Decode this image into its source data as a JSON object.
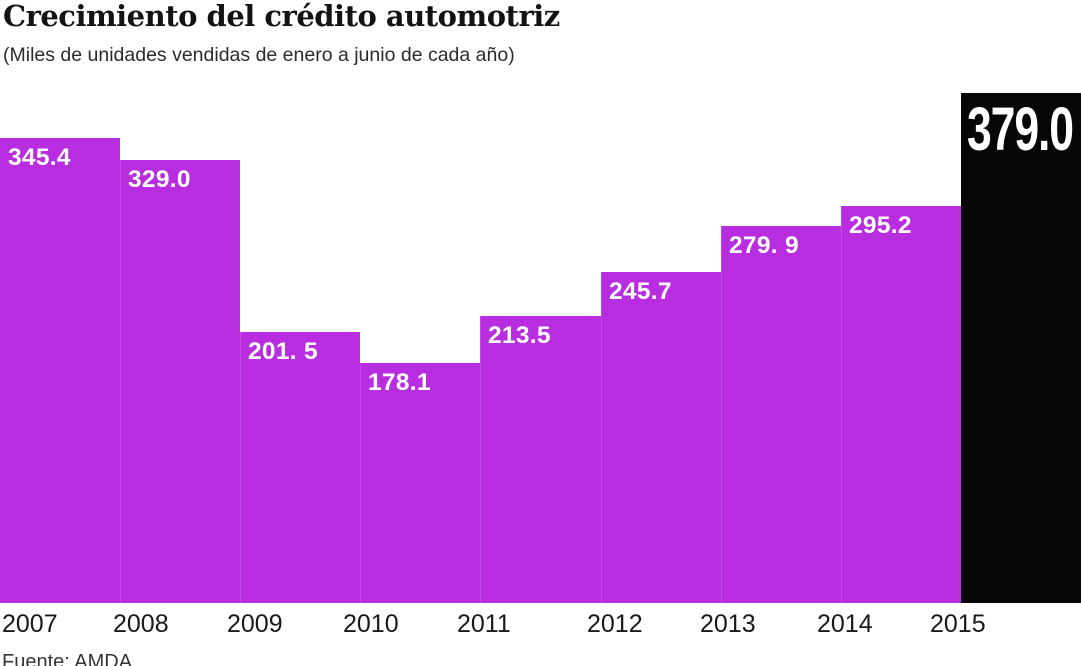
{
  "header": {
    "title": "Crecimiento del crédito automotriz",
    "subtitle": "(Miles de unidades vendidas de enero a junio de cada año)"
  },
  "source": "Fuente: AMDA",
  "colors": {
    "bar": "#b82de0",
    "highlight_bar": "#060606",
    "value_label": "#ffffff",
    "title_text": "#131313",
    "axis_text": "#191919"
  },
  "chart_data": {
    "type": "bar",
    "title": "Crecimiento del crédito automotriz",
    "subtitle": "(Miles de unidades vendidas de enero a junio de cada año)",
    "categories": [
      "2007",
      "2008",
      "2009",
      "2010",
      "2011",
      "2012",
      "2013",
      "2014",
      "2015"
    ],
    "values": [
      345.4,
      329.0,
      201.5,
      178.1,
      213.5,
      245.7,
      279.9,
      295.2,
      379.0
    ],
    "value_labels": [
      "345.4",
      "329.0",
      "201. 5",
      "178.1",
      "213.5",
      "245.7",
      "279. 9",
      "295.2",
      "379.0"
    ],
    "highlight_category": "2015",
    "xlabel": "",
    "ylabel": "",
    "ylim": [
      0,
      379
    ],
    "grid": false,
    "legend": "none",
    "source": "Fuente: AMDA"
  }
}
